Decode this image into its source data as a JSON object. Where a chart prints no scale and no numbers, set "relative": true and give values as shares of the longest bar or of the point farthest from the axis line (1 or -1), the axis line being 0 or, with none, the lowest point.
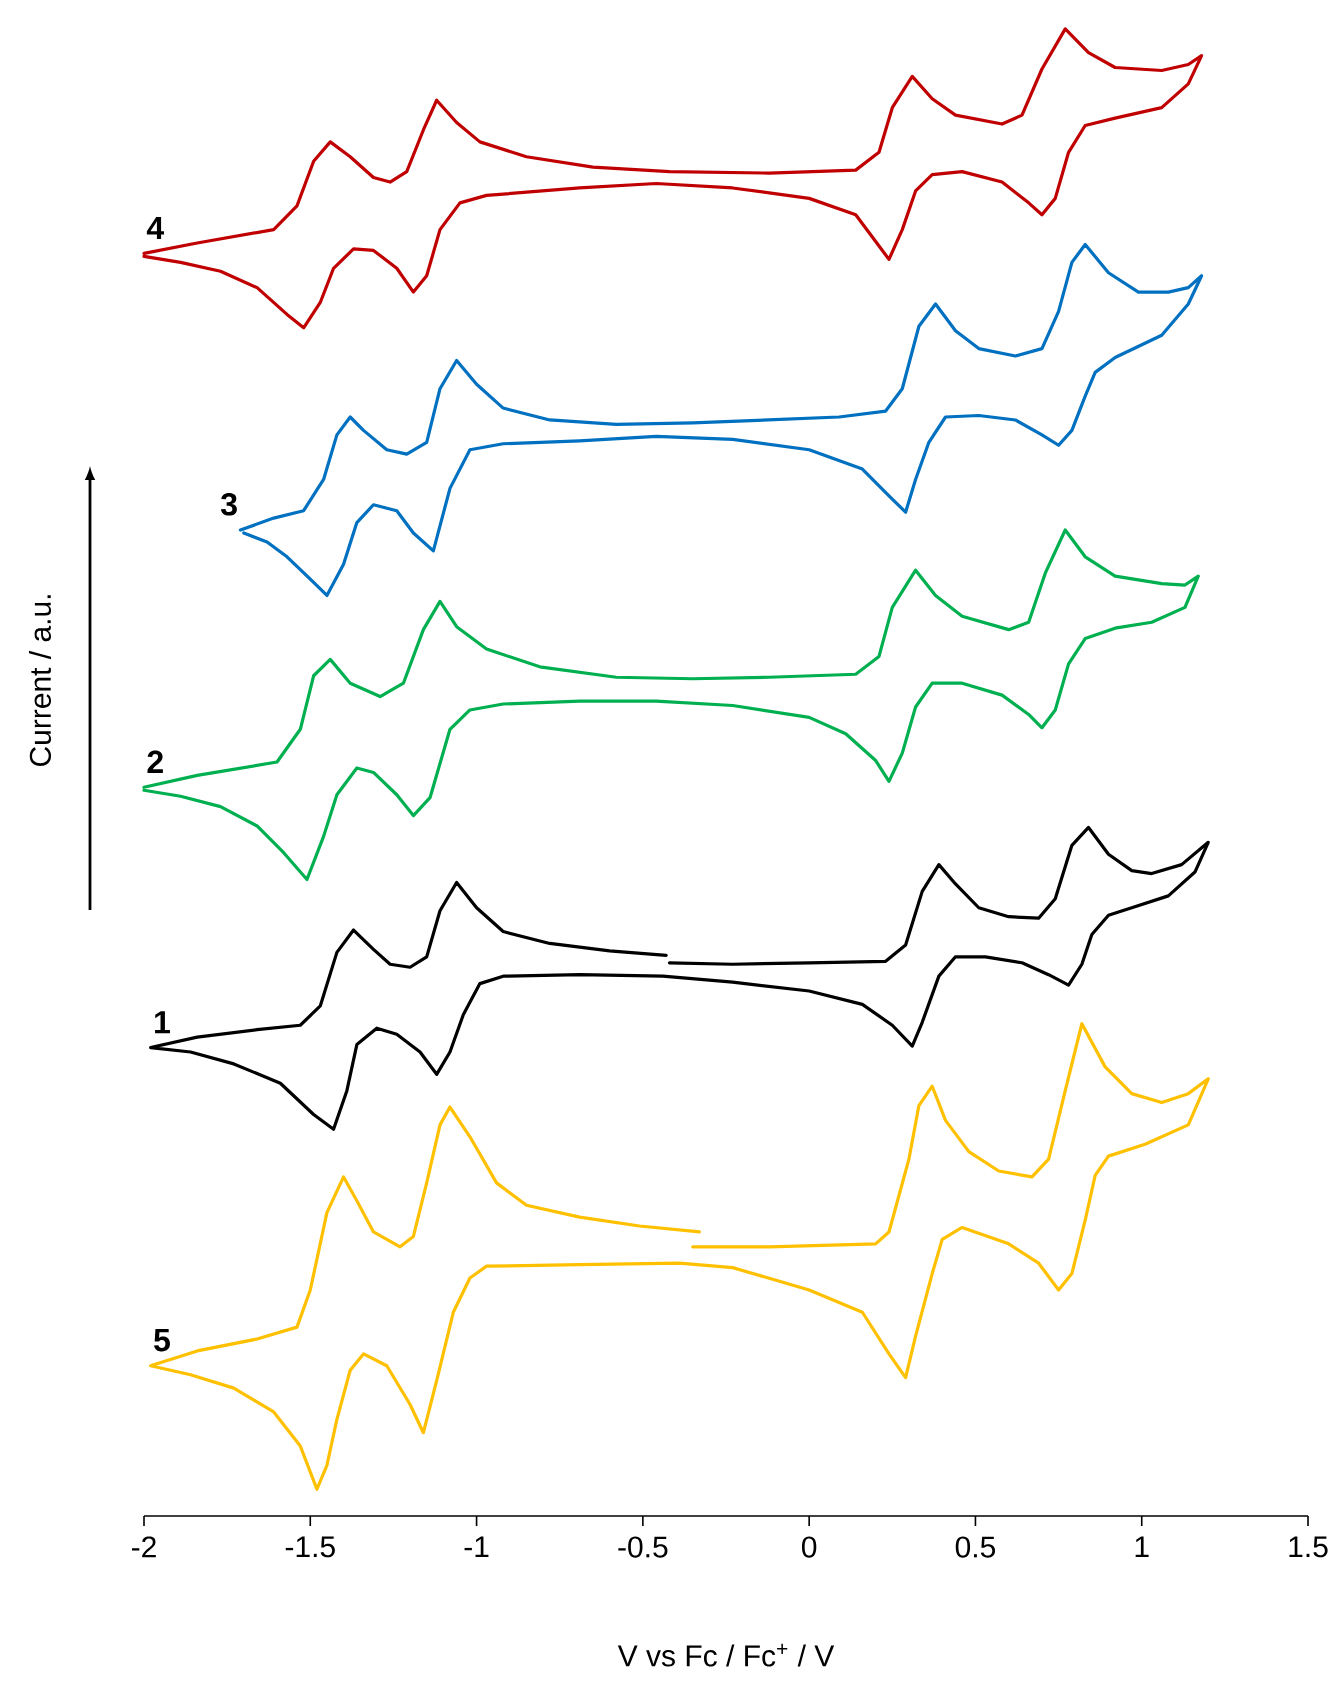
{
  "chart_data": {
    "type": "line",
    "relative": true,
    "xlabel": "V vs Fc / Fc$^{+}$ / V",
    "ylabel": "Current / a.u.",
    "xlim": [
      -2,
      1.5
    ],
    "xticks": [
      -2,
      -1.5,
      -1,
      -0.5,
      0,
      0.5,
      1,
      1.5
    ],
    "series": [
      {
        "name": "4",
        "color": "#c00000",
        "x": [
          -2.0,
          -1.84,
          -1.61,
          -1.54,
          -1.49,
          -1.44,
          -1.38,
          -1.31,
          -1.26,
          -1.21,
          -1.16,
          -1.12,
          -1.06,
          -0.99,
          -0.85,
          -0.65,
          -0.42,
          -0.12,
          0.14,
          0.21,
          0.25,
          0.31,
          0.37,
          0.44,
          0.58,
          0.64,
          0.7,
          0.77,
          0.84,
          0.92,
          1.06,
          1.14,
          1.18,
          1.14,
          1.06,
          0.92,
          0.83,
          0.78,
          0.74,
          0.7,
          0.66,
          0.58,
          0.46,
          0.37,
          0.32,
          0.28,
          0.24,
          0.2,
          0.14,
          0.0,
          -0.23,
          -0.46,
          -0.69,
          -0.97,
          -1.05,
          -1.11,
          -1.15,
          -1.19,
          -1.24,
          -1.31,
          -1.37,
          -1.43,
          -1.47,
          -1.52,
          -1.57,
          -1.66,
          -1.77,
          -1.89,
          -2.0
        ],
        "values": [
          0.849,
          0.856,
          0.865,
          0.881,
          0.911,
          0.924,
          0.914,
          0.9,
          0.897,
          0.904,
          0.932,
          0.952,
          0.937,
          0.924,
          0.914,
          0.907,
          0.904,
          0.903,
          0.905,
          0.917,
          0.947,
          0.968,
          0.953,
          0.942,
          0.936,
          0.942,
          0.973,
          1.0,
          0.984,
          0.974,
          0.972,
          0.976,
          0.982,
          0.963,
          0.947,
          0.94,
          0.935,
          0.917,
          0.886,
          0.875,
          0.883,
          0.897,
          0.904,
          0.902,
          0.891,
          0.865,
          0.845,
          0.857,
          0.875,
          0.886,
          0.893,
          0.896,
          0.893,
          0.888,
          0.883,
          0.865,
          0.834,
          0.823,
          0.839,
          0.851,
          0.852,
          0.839,
          0.816,
          0.799,
          0.808,
          0.826,
          0.837,
          0.843,
          0.847
        ]
      },
      {
        "name": "3",
        "color": "#0070c0",
        "x": [
          -1.71,
          -1.61,
          -1.52,
          -1.46,
          -1.42,
          -1.38,
          -1.34,
          -1.27,
          -1.21,
          -1.15,
          -1.11,
          -1.06,
          -1.0,
          -0.92,
          -0.78,
          -0.58,
          -0.35,
          -0.13,
          0.09,
          0.23,
          0.28,
          0.33,
          0.38,
          0.44,
          0.51,
          0.62,
          0.7,
          0.75,
          0.79,
          0.83,
          0.9,
          0.99,
          1.08,
          1.14,
          1.18,
          1.14,
          1.06,
          0.92,
          0.86,
          0.83,
          0.79,
          0.75,
          0.7,
          0.62,
          0.51,
          0.41,
          0.36,
          0.32,
          0.29,
          0.24,
          0.16,
          0.0,
          -0.23,
          -0.46,
          -0.69,
          -0.92,
          -1.02,
          -1.08,
          -1.13,
          -1.19,
          -1.24,
          -1.31,
          -1.36,
          -1.4,
          -1.45,
          -1.5,
          -1.57,
          -1.63,
          -1.7
        ],
        "values": [
          0.663,
          0.671,
          0.676,
          0.697,
          0.727,
          0.739,
          0.73,
          0.717,
          0.714,
          0.722,
          0.758,
          0.777,
          0.761,
          0.745,
          0.737,
          0.734,
          0.735,
          0.737,
          0.739,
          0.743,
          0.758,
          0.8,
          0.815,
          0.797,
          0.785,
          0.78,
          0.785,
          0.81,
          0.843,
          0.855,
          0.836,
          0.823,
          0.823,
          0.826,
          0.834,
          0.815,
          0.794,
          0.779,
          0.769,
          0.753,
          0.73,
          0.72,
          0.727,
          0.737,
          0.74,
          0.739,
          0.722,
          0.697,
          0.675,
          0.686,
          0.704,
          0.717,
          0.724,
          0.726,
          0.723,
          0.721,
          0.717,
          0.691,
          0.649,
          0.661,
          0.676,
          0.68,
          0.668,
          0.64,
          0.619,
          0.63,
          0.645,
          0.655,
          0.661
        ]
      },
      {
        "name": "2",
        "color": "#00b050",
        "x": [
          -2.0,
          -1.84,
          -1.6,
          -1.53,
          -1.49,
          -1.44,
          -1.38,
          -1.29,
          -1.22,
          -1.16,
          -1.11,
          -1.06,
          -0.97,
          -0.81,
          -0.58,
          -0.35,
          -0.12,
          0.14,
          0.21,
          0.25,
          0.32,
          0.38,
          0.46,
          0.6,
          0.66,
          0.71,
          0.77,
          0.83,
          0.92,
          1.06,
          1.13,
          1.17,
          1.13,
          1.03,
          0.92,
          0.83,
          0.78,
          0.74,
          0.7,
          0.66,
          0.58,
          0.46,
          0.37,
          0.32,
          0.28,
          0.24,
          0.2,
          0.11,
          0.0,
          -0.23,
          -0.46,
          -0.69,
          -0.92,
          -1.02,
          -1.08,
          -1.14,
          -1.19,
          -1.24,
          -1.31,
          -1.36,
          -1.42,
          -1.46,
          -1.51,
          -1.58,
          -1.66,
          -1.77,
          -1.89,
          -2.0
        ],
        "values": [
          0.49,
          0.498,
          0.507,
          0.529,
          0.565,
          0.576,
          0.56,
          0.551,
          0.56,
          0.596,
          0.615,
          0.598,
          0.583,
          0.571,
          0.564,
          0.563,
          0.564,
          0.566,
          0.578,
          0.611,
          0.636,
          0.619,
          0.605,
          0.596,
          0.601,
          0.634,
          0.663,
          0.645,
          0.632,
          0.627,
          0.626,
          0.632,
          0.611,
          0.601,
          0.597,
          0.59,
          0.573,
          0.542,
          0.53,
          0.539,
          0.552,
          0.56,
          0.56,
          0.544,
          0.513,
          0.494,
          0.508,
          0.526,
          0.537,
          0.545,
          0.548,
          0.548,
          0.546,
          0.542,
          0.529,
          0.483,
          0.471,
          0.485,
          0.5,
          0.503,
          0.485,
          0.457,
          0.428,
          0.446,
          0.464,
          0.477,
          0.484,
          0.488
        ]
      },
      {
        "name": "1",
        "color": "#000000",
        "x": [
          -0.42,
          -0.23,
          0.0,
          0.23,
          0.29,
          0.34,
          0.39,
          0.44,
          0.51,
          0.6,
          0.69,
          0.74,
          0.79,
          0.84,
          0.9,
          0.97,
          1.03,
          1.12,
          1.2,
          1.16,
          1.08,
          0.97,
          0.9,
          0.85,
          0.82,
          0.78,
          0.72,
          0.64,
          0.53,
          0.44,
          0.39,
          0.34,
          0.31,
          0.25,
          0.16,
          0.0,
          -0.23,
          -0.44,
          -0.69,
          -0.92,
          -0.99,
          -1.04,
          -1.08,
          -1.12,
          -1.17,
          -1.24,
          -1.3,
          -1.36,
          -1.39,
          -1.43,
          -1.49,
          -1.59,
          -1.73,
          -1.86,
          -1.98,
          -1.84,
          -1.66,
          -1.53,
          -1.47,
          -1.42,
          -1.37,
          -1.31,
          -1.26,
          -1.2,
          -1.15,
          -1.11,
          -1.06,
          -1.0,
          -0.92,
          -0.78,
          -0.6,
          -0.43
        ],
        "values": [
          0.372,
          0.371,
          0.372,
          0.373,
          0.384,
          0.42,
          0.438,
          0.425,
          0.409,
          0.403,
          0.402,
          0.415,
          0.451,
          0.463,
          0.445,
          0.434,
          0.432,
          0.438,
          0.453,
          0.433,
          0.417,
          0.409,
          0.404,
          0.391,
          0.371,
          0.357,
          0.364,
          0.372,
          0.376,
          0.376,
          0.363,
          0.332,
          0.316,
          0.33,
          0.344,
          0.353,
          0.359,
          0.363,
          0.364,
          0.363,
          0.358,
          0.337,
          0.312,
          0.297,
          0.312,
          0.324,
          0.328,
          0.317,
          0.286,
          0.26,
          0.27,
          0.291,
          0.304,
          0.312,
          0.315,
          0.322,
          0.327,
          0.33,
          0.343,
          0.379,
          0.394,
          0.381,
          0.371,
          0.369,
          0.376,
          0.407,
          0.426,
          0.409,
          0.393,
          0.385,
          0.38,
          0.377
        ]
      },
      {
        "name": "5",
        "color": "#ffc000",
        "x": [
          -0.35,
          -0.12,
          0.2,
          0.24,
          0.3,
          0.33,
          0.37,
          0.41,
          0.48,
          0.57,
          0.67,
          0.72,
          0.77,
          0.82,
          0.89,
          0.97,
          1.06,
          1.14,
          1.2,
          1.14,
          1.01,
          0.9,
          0.86,
          0.83,
          0.79,
          0.75,
          0.69,
          0.6,
          0.46,
          0.4,
          0.37,
          0.32,
          0.29,
          0.24,
          0.16,
          0.0,
          -0.23,
          -0.39,
          -0.69,
          -0.97,
          -1.02,
          -1.07,
          -1.12,
          -1.16,
          -1.2,
          -1.27,
          -1.34,
          -1.38,
          -1.42,
          -1.45,
          -1.48,
          -1.53,
          -1.61,
          -1.73,
          -1.86,
          -1.98,
          -1.84,
          -1.66,
          -1.54,
          -1.5,
          -1.45,
          -1.4,
          -1.36,
          -1.31,
          -1.23,
          -1.19,
          -1.15,
          -1.11,
          -1.08,
          -1.02,
          -0.94,
          -0.85,
          -0.69,
          -0.51,
          -0.33
        ],
        "values": [
          0.181,
          0.181,
          0.183,
          0.191,
          0.24,
          0.276,
          0.289,
          0.266,
          0.245,
          0.232,
          0.228,
          0.24,
          0.286,
          0.331,
          0.302,
          0.284,
          0.278,
          0.284,
          0.294,
          0.263,
          0.25,
          0.242,
          0.229,
          0.199,
          0.163,
          0.152,
          0.17,
          0.183,
          0.194,
          0.186,
          0.163,
          0.121,
          0.093,
          0.109,
          0.137,
          0.152,
          0.167,
          0.17,
          0.169,
          0.168,
          0.16,
          0.137,
          0.091,
          0.056,
          0.075,
          0.101,
          0.109,
          0.098,
          0.065,
          0.034,
          0.018,
          0.047,
          0.07,
          0.086,
          0.095,
          0.101,
          0.111,
          0.119,
          0.127,
          0.152,
          0.204,
          0.228,
          0.212,
          0.191,
          0.181,
          0.188,
          0.224,
          0.263,
          0.275,
          0.255,
          0.224,
          0.209,
          0.201,
          0.195,
          0.191
        ]
      }
    ]
  }
}
